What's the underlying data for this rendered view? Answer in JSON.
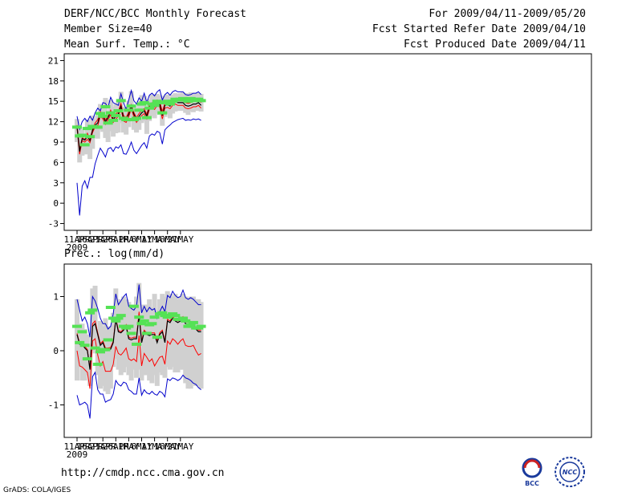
{
  "header": {
    "title": "DERF/NCC/BCC Monthly Forecast",
    "member_size": "Member Size=40",
    "variable": "Mean Surf. Temp.: °C",
    "period": "For 2009/04/11-2009/05/20",
    "started": "Fcst Started Refer Date 2009/04/10",
    "produced": "Fcst Produced Date 2009/04/11"
  },
  "footer": {
    "url": "http://cmdp.ncc.cma.gov.cn",
    "grads": "GrADS: COLA/IGES",
    "logo_left": "BCC",
    "logo_right": "NCC"
  },
  "colors": {
    "box": "#d0d0d0",
    "median": "#55e255",
    "mean": "#000000",
    "inner": "#ff0000",
    "outer": "#0000cc"
  },
  "chart_data": [
    {
      "type": "line",
      "title": "Mean Surf. Temp.: °C",
      "x_ticks": [
        "11APR",
        "16APR",
        "21APR",
        "26APR",
        "1MAY",
        "6MAY",
        "11MAY",
        "16MAY",
        "21MAY"
      ],
      "x_sublabel": "2009",
      "ylim": [
        -4,
        22
      ],
      "y_ticks": [
        -3,
        0,
        3,
        6,
        9,
        12,
        15,
        18,
        21
      ],
      "day_start": "2009-04-11",
      "series": [
        {
          "name": "mean",
          "color": "#000000",
          "values": [
            11.3,
            7.6,
            9.5,
            9.3,
            9.8,
            9.2,
            10.7,
            11.5,
            11.8,
            13.2,
            12.8,
            12.0,
            12.6,
            13.4,
            12.3,
            12.8,
            13.2,
            14.3,
            12.5,
            12.3,
            13.1,
            14.3,
            13.1,
            12.3,
            12.8,
            13.3,
            13.6,
            12.8,
            14.2,
            14.5,
            14.2,
            14.8,
            14.6,
            12.9,
            14.4,
            14.5,
            14.3,
            14.8,
            15.0,
            14.8,
            14.8,
            14.8,
            14.4,
            14.3,
            14.4,
            14.6,
            14.6,
            14.8,
            14.4
          ]
        },
        {
          "name": "upper",
          "color": "#ff0000",
          "values": [
            11.5,
            8.0,
            9.6,
            9.4,
            10.3,
            9.4,
            10.9,
            11.8,
            12.3,
            13.5,
            13.1,
            12.3,
            12.8,
            13.7,
            12.6,
            13.1,
            13.5,
            14.7,
            12.9,
            12.6,
            13.5,
            14.5,
            13.4,
            12.6,
            13.2,
            13.7,
            13.9,
            13.1,
            14.5,
            14.8,
            14.5,
            15.2,
            15.0,
            13.5,
            14.8,
            14.9,
            14.6,
            15.2,
            15.4,
            15.2,
            15.2,
            15.2,
            14.8,
            14.7,
            14.8,
            15.0,
            15.0,
            15.2,
            14.8
          ]
        },
        {
          "name": "lower",
          "color": "#ff0000",
          "values": [
            11.0,
            7.2,
            9.2,
            9.0,
            9.4,
            8.9,
            10.4,
            11.2,
            11.4,
            12.8,
            12.4,
            11.6,
            12.3,
            13.0,
            11.9,
            12.4,
            12.8,
            13.9,
            12.1,
            11.9,
            12.7,
            13.9,
            12.7,
            11.9,
            12.4,
            12.9,
            13.2,
            12.4,
            13.8,
            14.1,
            13.8,
            14.4,
            14.2,
            12.4,
            14.0,
            14.1,
            13.9,
            14.4,
            14.6,
            14.4,
            14.4,
            14.4,
            14.0,
            13.9,
            14.0,
            14.2,
            14.2,
            14.4,
            14.0
          ]
        },
        {
          "name": "max",
          "color": "#0000cc",
          "values": [
            12.8,
            10.9,
            12.0,
            12.5,
            12.0,
            12.8,
            12.2,
            13.3,
            14.0,
            13.6,
            14.8,
            14.7,
            14.1,
            15.6,
            14.8,
            14.6,
            14.4,
            16.1,
            14.8,
            13.8,
            15.2,
            16.6,
            15.1,
            14.6,
            15.5,
            15.0,
            16.2,
            14.8,
            15.9,
            16.2,
            15.8,
            16.4,
            16.7,
            15.2,
            16.0,
            16.3,
            15.9,
            16.4,
            16.6,
            16.4,
            16.4,
            16.4,
            16.0,
            15.9,
            16.0,
            16.2,
            16.2,
            16.4,
            16.0
          ]
        },
        {
          "name": "min",
          "color": "#0000cc",
          "values": [
            3.0,
            -1.8,
            2.5,
            3.3,
            2.2,
            3.8,
            3.8,
            5.8,
            7.0,
            8.1,
            7.5,
            6.8,
            8.0,
            8.2,
            7.6,
            8.3,
            8.1,
            8.6,
            7.3,
            7.2,
            8.0,
            9.0,
            7.8,
            7.3,
            7.9,
            8.5,
            8.9,
            8.1,
            9.9,
            10.2,
            10.0,
            10.6,
            10.4,
            8.7,
            10.8,
            11.2,
            11.5,
            11.9,
            12.1,
            12.3,
            12.4,
            12.5,
            12.2,
            12.3,
            12.2,
            12.4,
            12.3,
            12.4,
            12.2
          ]
        },
        {
          "name": "ensemble-median",
          "color": "#55e255",
          "marker": "bar",
          "values": [
            11.2,
            9.9,
            10.0,
            8.6,
            11.0,
            9.8,
            11.3,
            11.2,
            11.2,
            13.2,
            12.8,
            14.2,
            11.8,
            13.3,
            12.2,
            12.9,
            13.6,
            15.1,
            12.5,
            12.3,
            13.7,
            14.3,
            12.3,
            12.5,
            13.7,
            14.6,
            14.8,
            12.6,
            14.0,
            14.6,
            14.4,
            15.0,
            14.8,
            13.3,
            14.8,
            15.0,
            14.6,
            15.0,
            15.3,
            15.2,
            15.3,
            15.4,
            15.2,
            15.0,
            15.4,
            15.1,
            15.3,
            15.3,
            15.1
          ]
        },
        {
          "name": "box-top",
          "color": "#d0d0d0",
          "values": [
            12.4,
            11.3,
            10.8,
            10.2,
            12.3,
            11.4,
            12.9,
            12.3,
            12.9,
            14.6,
            14.0,
            15.5,
            13.1,
            15.2,
            14.2,
            14.6,
            15.0,
            16.4,
            14.1,
            14.2,
            15.1,
            16.5,
            14.2,
            13.8,
            15.0,
            15.9,
            15.8,
            14.0,
            15.3,
            16.0,
            15.7,
            16.1,
            15.9,
            14.8,
            15.8,
            16.0,
            15.6,
            16.0,
            16.2,
            16.1,
            16.2,
            16.3,
            16.2,
            16.1,
            16.3,
            16.1,
            16.2,
            16.2,
            16.1
          ]
        },
        {
          "name": "box-bottom",
          "color": "#d0d0d0",
          "values": [
            9.0,
            6.0,
            7.0,
            7.2,
            7.2,
            6.5,
            8.0,
            9.6,
            9.5,
            10.8,
            10.5,
            9.6,
            9.0,
            10.6,
            9.8,
            10.3,
            10.4,
            11.8,
            10.4,
            10.1,
            11.2,
            12.1,
            10.8,
            10.4,
            10.8,
            11.8,
            12.1,
            10.2,
            12.1,
            12.8,
            12.5,
            13.2,
            13.0,
            11.4,
            12.7,
            13.1,
            12.5,
            13.2,
            13.5,
            13.6,
            13.6,
            13.6,
            13.3,
            13.0,
            13.5,
            13.4,
            13.6,
            13.6,
            13.5
          ]
        }
      ]
    },
    {
      "type": "line",
      "title": "Prec.: log(mm/d)",
      "x_ticks": [
        "11APR",
        "16APR",
        "21APR",
        "26APR",
        "1MAY",
        "6MAY",
        "11MAY",
        "16MAY",
        "21MAY"
      ],
      "x_sublabel": "2009",
      "ylim": [
        -1.6,
        1.6
      ],
      "y_ticks": [
        -1,
        0,
        1
      ],
      "day_start": "2009-04-11",
      "series": [
        {
          "name": "mean",
          "color": "#000000",
          "values": [
            0.3,
            0.12,
            0.12,
            0.05,
            0.0,
            -0.35,
            0.45,
            0.5,
            0.3,
            0.1,
            0.15,
            0.02,
            0.02,
            0.03,
            0.15,
            0.58,
            0.35,
            0.33,
            0.38,
            0.45,
            0.22,
            0.2,
            0.22,
            0.22,
            0.65,
            0.15,
            0.35,
            0.3,
            0.28,
            0.3,
            0.3,
            0.15,
            0.3,
            0.35,
            0.15,
            0.55,
            0.52,
            0.6,
            0.55,
            0.52,
            0.55,
            0.6,
            0.5,
            0.5,
            0.48,
            0.48,
            0.4,
            0.35,
            0.35
          ]
        },
        {
          "name": "upper",
          "color": "#ff0000",
          "values": [
            0.32,
            0.14,
            0.15,
            0.08,
            0.02,
            -0.32,
            0.5,
            0.55,
            0.33,
            0.13,
            0.18,
            0.05,
            0.05,
            0.06,
            0.18,
            0.6,
            0.38,
            0.35,
            0.4,
            0.48,
            0.25,
            0.23,
            0.25,
            0.25,
            0.72,
            0.18,
            0.38,
            0.33,
            0.3,
            0.33,
            0.33,
            0.18,
            0.33,
            0.38,
            0.18,
            0.58,
            0.55,
            0.63,
            0.58,
            0.55,
            0.58,
            0.63,
            0.53,
            0.53,
            0.5,
            0.5,
            0.42,
            0.38,
            0.38
          ]
        },
        {
          "name": "lower",
          "color": "#ff0000",
          "values": [
            0.0,
            -0.28,
            -0.3,
            -0.35,
            -0.4,
            -0.7,
            0.18,
            0.22,
            -0.08,
            -0.28,
            -0.2,
            -0.38,
            -0.38,
            -0.38,
            -0.25,
            0.08,
            -0.05,
            -0.08,
            -0.02,
            0.05,
            -0.15,
            -0.18,
            -0.15,
            -0.2,
            0.28,
            -0.28,
            -0.05,
            -0.12,
            -0.2,
            -0.15,
            -0.28,
            -0.2,
            -0.12,
            -0.1,
            -0.25,
            0.18,
            0.12,
            0.22,
            0.18,
            0.12,
            0.18,
            0.22,
            0.1,
            0.08,
            0.08,
            0.1,
            0.0,
            -0.08,
            -0.05
          ]
        },
        {
          "name": "max",
          "color": "#0000cc",
          "values": [
            0.95,
            0.75,
            0.55,
            0.62,
            0.5,
            0.25,
            1.0,
            0.92,
            0.78,
            0.6,
            0.5,
            0.5,
            0.4,
            0.45,
            0.68,
            1.05,
            0.85,
            0.92,
            1.0,
            1.05,
            0.82,
            0.78,
            0.75,
            0.82,
            1.22,
            0.7,
            0.82,
            0.72,
            0.8,
            0.75,
            0.78,
            0.6,
            0.72,
            0.82,
            0.72,
            1.02,
            0.98,
            1.1,
            1.02,
            0.98,
            1.0,
            1.12,
            0.98,
            0.95,
            0.98,
            0.95,
            0.9,
            0.85,
            0.85
          ]
        },
        {
          "name": "min",
          "color": "#0000cc",
          "values": [
            -0.82,
            -1.0,
            -0.98,
            -0.95,
            -1.0,
            -1.25,
            -0.48,
            -0.4,
            -0.72,
            -0.8,
            -0.8,
            -0.95,
            -0.92,
            -0.9,
            -0.8,
            -0.55,
            -0.62,
            -0.65,
            -0.58,
            -0.6,
            -0.72,
            -0.75,
            -0.8,
            -0.8,
            -0.5,
            -0.82,
            -0.72,
            -0.78,
            -0.8,
            -0.75,
            -0.8,
            -0.82,
            -0.75,
            -0.78,
            -0.85,
            -0.52,
            -0.55,
            -0.5,
            -0.52,
            -0.55,
            -0.52,
            -0.45,
            -0.5,
            -0.52,
            -0.55,
            -0.6,
            -0.62,
            -0.68,
            -0.72
          ]
        },
        {
          "name": "ensemble-median",
          "color": "#55e255",
          "marker": "bar",
          "values": [
            0.45,
            0.15,
            0.35,
            0.1,
            -0.15,
            0.7,
            0.75,
            0.05,
            -0.25,
            -0.02,
            0.02,
            0.02,
            0.2,
            0.8,
            0.6,
            0.55,
            0.6,
            0.65,
            0.45,
            0.42,
            0.45,
            0.32,
            0.82,
            0.12,
            0.62,
            0.5,
            0.55,
            0.32,
            0.48,
            0.5,
            0.62,
            0.25,
            0.68,
            0.7,
            0.65,
            0.62,
            0.65,
            0.68,
            0.65,
            0.58,
            0.58,
            0.6,
            0.55,
            0.45,
            0.48,
            0.52,
            0.42,
            0.42,
            0.45
          ]
        },
        {
          "name": "box-top",
          "color": "#d0d0d0",
          "values": [
            0.95,
            0.5,
            0.5,
            0.4,
            0.3,
            0.05,
            1.15,
            1.2,
            0.4,
            0.55,
            0.45,
            0.6,
            0.45,
            0.45,
            0.7,
            1.15,
            0.95,
            0.9,
            1.0,
            0.95,
            0.9,
            0.85,
            0.85,
            1.0,
            1.25,
            0.85,
            0.85,
            0.85,
            0.95,
            0.8,
            1.05,
            0.75,
            0.95,
            1.05,
            1.0,
            1.1,
            1.05,
            1.0,
            1.05,
            0.95,
            1.0,
            1.05,
            1.0,
            0.95,
            1.0,
            1.0,
            0.95,
            0.95,
            0.9
          ]
        },
        {
          "name": "box-bottom",
          "color": "#d0d0d0",
          "values": [
            -0.55,
            -0.3,
            -0.55,
            -0.55,
            -0.45,
            -0.65,
            0.0,
            -0.05,
            -0.45,
            -0.7,
            -0.65,
            -0.75,
            -0.8,
            -0.7,
            -0.3,
            -0.15,
            -0.35,
            -0.45,
            -0.4,
            -0.3,
            -0.45,
            -0.55,
            -0.35,
            -0.5,
            -0.35,
            -0.55,
            -0.45,
            -0.45,
            -0.55,
            -0.6,
            -0.45,
            -0.65,
            -0.4,
            -0.45,
            -0.5,
            -0.3,
            -0.35,
            -0.3,
            -0.4,
            -0.4,
            -0.35,
            -0.35,
            -0.6,
            -0.7,
            -0.7,
            -0.6,
            -0.65,
            -0.65,
            -0.7
          ]
        }
      ]
    }
  ]
}
